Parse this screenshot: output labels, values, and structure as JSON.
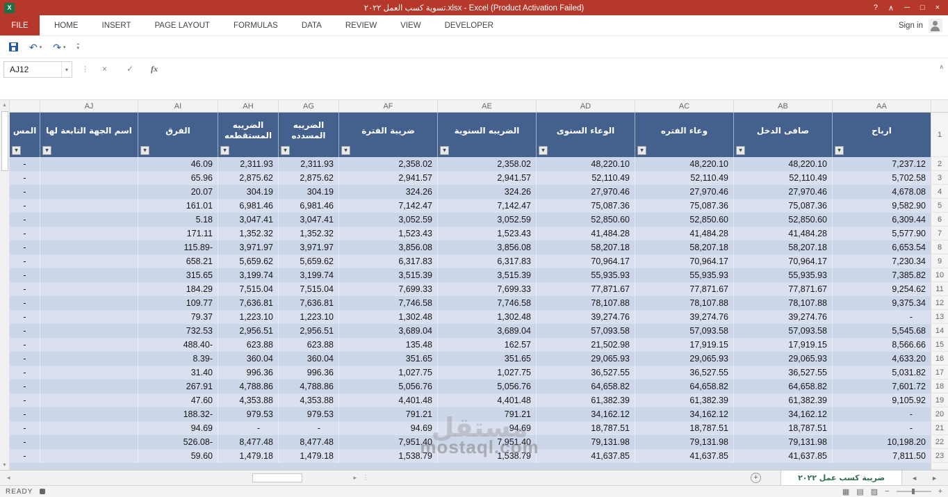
{
  "title_bar": {
    "title": "تسوية كسب العمل ٢٠٢٢.xlsx -  Excel (Product Activation Failed)"
  },
  "ribbon": {
    "file_tab": "FILE",
    "tabs": [
      "HOME",
      "INSERT",
      "PAGE LAYOUT",
      "FORMULAS",
      "DATA",
      "REVIEW",
      "VIEW",
      "DEVELOPER"
    ],
    "sign_in": "Sign in"
  },
  "formula_bar": {
    "name_box": "AJ12",
    "formula": ""
  },
  "sheet": {
    "col_letters": [
      "",
      "AJ",
      "AI",
      "AH",
      "AG",
      "AF",
      "AE",
      "AD",
      "AC",
      "AB",
      "AA"
    ],
    "header_labels": [
      "المس",
      "اسم الجهة التابعة لها",
      "الفرق",
      "الضريبه المستقطعه",
      "الضريبه المسدده",
      "ضريبة الفترة",
      "الضريبه السنوية",
      "الوعاء السنوى",
      "وعاء الفتره",
      "صافى الدخل",
      "ارباح"
    ],
    "row_numbers": [
      "1",
      "2",
      "3",
      "4",
      "5",
      "6",
      "7",
      "8",
      "9",
      "10",
      "11",
      "12",
      "13",
      "14",
      "15",
      "16",
      "17",
      "18",
      "19",
      "20",
      "21",
      "22",
      "23"
    ],
    "rows": [
      [
        "-",
        "",
        "46.09",
        "2,311.93",
        "2,311.93",
        "2,358.02",
        "2,358.02",
        "48,220.10",
        "48,220.10",
        "48,220.10",
        "7,237.12"
      ],
      [
        "-",
        "",
        "65.96",
        "2,875.62",
        "2,875.62",
        "2,941.57",
        "2,941.57",
        "52,110.49",
        "52,110.49",
        "52,110.49",
        "5,702.58"
      ],
      [
        "-",
        "",
        "20.07",
        "304.19",
        "304.19",
        "324.26",
        "324.26",
        "27,970.46",
        "27,970.46",
        "27,970.46",
        "4,678.08"
      ],
      [
        "-",
        "",
        "161.01",
        "6,981.46",
        "6,981.46",
        "7,142.47",
        "7,142.47",
        "75,087.36",
        "75,087.36",
        "75,087.36",
        "9,582.90"
      ],
      [
        "-",
        "",
        "5.18",
        "3,047.41",
        "3,047.41",
        "3,052.59",
        "3,052.59",
        "52,850.60",
        "52,850.60",
        "52,850.60",
        "6,309.44"
      ],
      [
        "-",
        "",
        "171.11",
        "1,352.32",
        "1,352.32",
        "1,523.43",
        "1,523.43",
        "41,484.28",
        "41,484.28",
        "41,484.28",
        "5,577.90"
      ],
      [
        "-",
        "",
        "115.89-",
        "3,971.97",
        "3,971.97",
        "3,856.08",
        "3,856.08",
        "58,207.18",
        "58,207.18",
        "58,207.18",
        "6,653.54"
      ],
      [
        "-",
        "",
        "658.21",
        "5,659.62",
        "5,659.62",
        "6,317.83",
        "6,317.83",
        "70,964.17",
        "70,964.17",
        "70,964.17",
        "7,230.34"
      ],
      [
        "-",
        "",
        "315.65",
        "3,199.74",
        "3,199.74",
        "3,515.39",
        "3,515.39",
        "55,935.93",
        "55,935.93",
        "55,935.93",
        "7,385.82"
      ],
      [
        "-",
        "",
        "184.29",
        "7,515.04",
        "7,515.04",
        "7,699.33",
        "7,699.33",
        "77,871.67",
        "77,871.67",
        "77,871.67",
        "9,254.62"
      ],
      [
        "-",
        "",
        "109.77",
        "7,636.81",
        "7,636.81",
        "7,746.58",
        "7,746.58",
        "78,107.88",
        "78,107.88",
        "78,107.88",
        "9,375.34"
      ],
      [
        "-",
        "",
        "79.37",
        "1,223.10",
        "1,223.10",
        "1,302.48",
        "1,302.48",
        "39,274.76",
        "39,274.76",
        "39,274.76",
        "-"
      ],
      [
        "-",
        "",
        "732.53",
        "2,956.51",
        "2,956.51",
        "3,689.04",
        "3,689.04",
        "57,093.58",
        "57,093.58",
        "57,093.58",
        "5,545.68"
      ],
      [
        "-",
        "",
        "488.40-",
        "623.88",
        "623.88",
        "135.48",
        "162.57",
        "21,502.98",
        "17,919.15",
        "17,919.15",
        "8,566.66"
      ],
      [
        "-",
        "",
        "8.39-",
        "360.04",
        "360.04",
        "351.65",
        "351.65",
        "29,065.93",
        "29,065.93",
        "29,065.93",
        "4,633.20"
      ],
      [
        "-",
        "",
        "31.40",
        "996.36",
        "996.36",
        "1,027.75",
        "1,027.75",
        "36,527.55",
        "36,527.55",
        "36,527.55",
        "5,031.82"
      ],
      [
        "-",
        "",
        "267.91",
        "4,788.86",
        "4,788.86",
        "5,056.76",
        "5,056.76",
        "64,658.82",
        "64,658.82",
        "64,658.82",
        "7,601.72"
      ],
      [
        "-",
        "",
        "47.60",
        "4,353.88",
        "4,353.88",
        "4,401.48",
        "4,401.48",
        "61,382.39",
        "61,382.39",
        "61,382.39",
        "9,105.92"
      ],
      [
        "-",
        "",
        "188.32-",
        "979.53",
        "979.53",
        "791.21",
        "791.21",
        "34,162.12",
        "34,162.12",
        "34,162.12",
        "-"
      ],
      [
        "-",
        "",
        "94.69",
        "-",
        "-",
        "94.69",
        "94.69",
        "18,787.51",
        "18,787.51",
        "18,787.51",
        "-"
      ],
      [
        "-",
        "",
        "526.08-",
        "8,477.48",
        "8,477.48",
        "7,951.40",
        "7,951.40",
        "79,131.98",
        "79,131.98",
        "79,131.98",
        "10,198.20"
      ],
      [
        "-",
        "",
        "59.60",
        "1,479.18",
        "1,479.18",
        "1,538.79",
        "1,538.79",
        "41,637.85",
        "41,637.85",
        "41,637.85",
        "7,811.50"
      ]
    ]
  },
  "tabs_bar": {
    "sheet_name": "ضريبة كسب عمل ٢٠٢٢"
  },
  "status_bar": {
    "ready": "READY"
  },
  "watermark": {
    "arabic": "مستقل",
    "latin": "mostaql.com"
  },
  "colors": {
    "titlebar_red": "#b5382b",
    "header_blue": "#44618e",
    "band_dark": "#ccd6e9",
    "band_light": "#dae0ef",
    "excel_green": "#1e7145"
  },
  "icons": {
    "excel_logo": "X",
    "help": "?",
    "ribbon_display": "∧",
    "minimize": "─",
    "maximize": "□",
    "close": "×",
    "undo": "↶",
    "redo": "↷",
    "dropdown": "▾",
    "dots": "⋮",
    "cancel": "×",
    "enter": "✓",
    "fx": "fx",
    "collapse_formula_bar": "∧",
    "filter": "▼",
    "scroll_up": "▴",
    "scroll_down": "▾",
    "scroll_left": "◂",
    "scroll_right": "▸",
    "tab_nav_left": "◄",
    "tab_nav_right": "►",
    "new_sheet": "+",
    "view_normal": "▦",
    "view_page_layout": "▤",
    "view_page_break": "▨",
    "zoom_out": "−",
    "zoom_in": "+"
  }
}
